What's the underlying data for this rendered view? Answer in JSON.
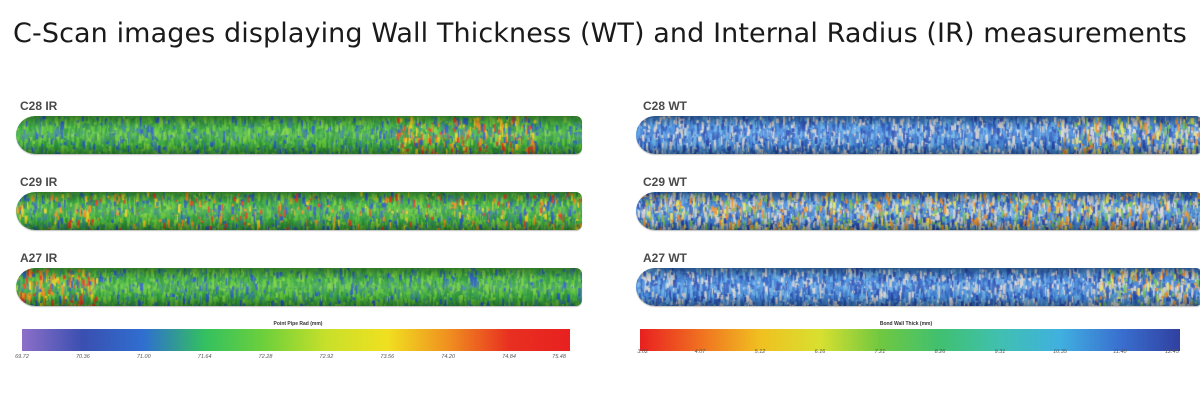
{
  "title": "C-Scan images displaying Wall Thickness (WT) and Internal Radius (IR) measurements",
  "left_panel": {
    "labels": [
      "C28 IR",
      "C29 IR",
      "A27 IR"
    ],
    "scale_title": "Point Pipe Rad (mm)",
    "ticks": [
      "69.72",
      "70.36",
      "71.00",
      "71.64",
      "72.28",
      "72.92",
      "73.56",
      "74.20",
      "74.84",
      "75.48"
    ],
    "colors": [
      "#8c6fc8",
      "#3a4fb0",
      "#2f6fd0",
      "#33c060",
      "#6fd03a",
      "#c8e02a",
      "#f0e020",
      "#f09020",
      "#e83020",
      "#e82020"
    ]
  },
  "right_panel": {
    "labels": [
      "C28 WT",
      "C29 WT",
      "A27 WT"
    ],
    "scale_title": "Bond Wall Thick (mm)",
    "ticks": [
      "3.02",
      "4.07",
      "5.12",
      "6.16",
      "7.21",
      "8.26",
      "9.31",
      "10.35",
      "11.40",
      "12.45"
    ],
    "colors": [
      "#e82020",
      "#f07020",
      "#f0c020",
      "#d8e030",
      "#70c840",
      "#40c070",
      "#40c0b0",
      "#40b0e0",
      "#3a70d0",
      "#3040a0"
    ]
  }
}
